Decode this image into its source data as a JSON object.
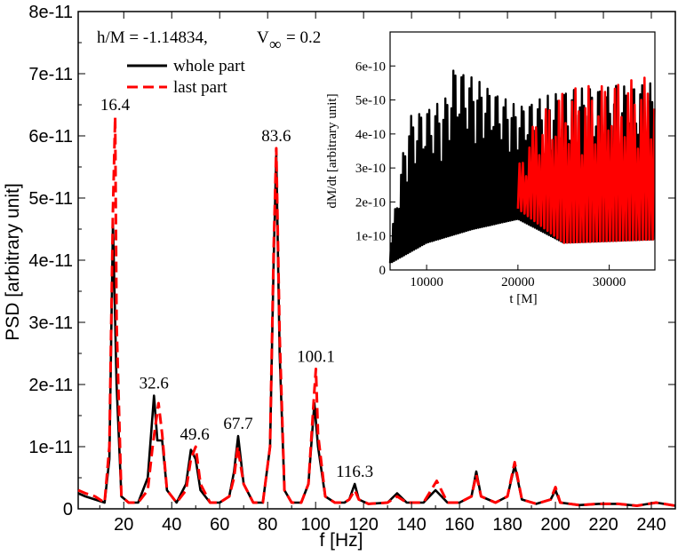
{
  "chart_data": [
    {
      "type": "line",
      "annotation": {
        "prefix": "h/M = -1.14834,",
        "v_symbol": "V",
        "v_subscript": "∞",
        "v_suffix": "= 0.2"
      },
      "xlabel": "f [Hz]",
      "ylabel": "PSD [arbitrary unit]",
      "xlim": [
        1,
        250
      ],
      "ylim": [
        0,
        8e-11
      ],
      "xticks": [
        20,
        40,
        60,
        80,
        100,
        120,
        140,
        160,
        180,
        200,
        220,
        240
      ],
      "xtick_labels": [
        "20",
        "40",
        "60",
        "80",
        "100",
        "120",
        "140",
        "160",
        "180",
        "200",
        "220",
        "240"
      ],
      "yticks": [
        0,
        1e-11,
        2e-11,
        3e-11,
        4e-11,
        5e-11,
        6e-11,
        7e-11,
        8e-11
      ],
      "ytick_labels": [
        "0",
        "1e-11",
        "2e-11",
        "3e-11",
        "4e-11",
        "5e-11",
        "6e-11",
        "7e-11",
        "8e-11"
      ],
      "grid": false,
      "legend_position": "top-left",
      "series": [
        {
          "name": "whole part",
          "color": "#000000",
          "dash": "solid",
          "x": [
            1,
            4,
            8,
            12,
            14,
            15.5,
            17,
            19,
            22,
            26,
            30,
            32.6,
            34,
            36,
            38,
            42,
            46,
            48,
            50,
            52,
            56,
            60,
            64,
            66,
            67.7,
            70,
            74,
            78,
            81,
            82.5,
            83.6,
            85,
            87,
            90,
            94,
            97,
            99.5,
            101,
            104,
            108,
            112,
            114,
            116.3,
            118,
            122,
            130,
            134,
            138,
            145,
            150,
            155,
            160,
            165,
            167,
            169,
            175,
            180,
            183,
            186,
            192,
            198,
            200,
            202,
            210,
            218,
            226,
            234,
            242,
            250
          ],
          "y": [
            2.5e-12,
            2e-12,
            1.5e-12,
            1e-12,
            8e-12,
            4.6e-11,
            2e-11,
            2e-12,
            1e-12,
            1e-12,
            5e-12,
            1.82e-11,
            1.1e-11,
            1.1e-11,
            3e-12,
            1e-12,
            4e-12,
            9.5e-12,
            8e-12,
            3e-12,
            1e-12,
            1e-12,
            2e-12,
            6e-12,
            1.17e-11,
            4e-12,
            1e-12,
            1e-12,
            1e-11,
            4e-11,
            5.7e-11,
            2.5e-11,
            3e-12,
            1e-12,
            1e-12,
            4e-12,
            1.7e-11,
            1e-11,
            2e-12,
            1e-12,
            1e-12,
            1.5e-12,
            4e-12,
            1.5e-12,
            8e-13,
            1e-12,
            2.5e-12,
            1e-12,
            1e-12,
            3e-12,
            1e-12,
            1e-12,
            2e-12,
            6e-12,
            2e-12,
            1e-12,
            2e-12,
            7e-12,
            1.5e-12,
            8e-13,
            1.5e-12,
            3e-12,
            1e-12,
            6e-13,
            8e-13,
            8e-13,
            5e-13,
            1e-12,
            5e-13
          ]
        },
        {
          "name": "last part",
          "color": "#ff0000",
          "dash": "dashed",
          "x": [
            1,
            4,
            8,
            12,
            14,
            15.5,
            16.4,
            17,
            19,
            22,
            26,
            30,
            32,
            34.5,
            36,
            38,
            42,
            46,
            48,
            50,
            52,
            56,
            60,
            64,
            66,
            67.5,
            70,
            74,
            78,
            81,
            82.5,
            83.6,
            85,
            87,
            90,
            94,
            97,
            99.5,
            100.1,
            101,
            104,
            108,
            112,
            114,
            116.3,
            118,
            122,
            130,
            134,
            138,
            145,
            150.5,
            155,
            160,
            165,
            167,
            169,
            175,
            180,
            183,
            186,
            192,
            198,
            200,
            202,
            210,
            218,
            226,
            234,
            242,
            250
          ],
          "y": [
            3e-12,
            2.5e-12,
            2e-12,
            1e-12,
            1e-11,
            4.8e-11,
            6.3e-11,
            3e-11,
            2e-12,
            1e-12,
            1e-12,
            3e-12,
            1e-11,
            1.7e-11,
            1.2e-11,
            3e-12,
            1e-12,
            3e-12,
            8e-12,
            1e-11,
            4e-12,
            1e-12,
            1e-12,
            2e-12,
            5e-12,
            1e-11,
            4e-12,
            1e-12,
            1e-12,
            1e-11,
            4.2e-11,
            5.8e-11,
            2.8e-11,
            3e-12,
            1e-12,
            1e-12,
            4e-12,
            1.9e-11,
            2.25e-11,
            1.2e-11,
            2e-12,
            1e-12,
            1e-12,
            1.5e-12,
            3e-12,
            1.5e-12,
            8e-13,
            1e-12,
            2e-12,
            1e-12,
            1e-12,
            4.5e-12,
            1e-12,
            1e-12,
            2e-12,
            5.5e-12,
            2e-12,
            1e-12,
            2e-12,
            7.5e-12,
            1.5e-12,
            8e-13,
            1.5e-12,
            3.5e-12,
            1e-12,
            6e-13,
            8e-13,
            8e-13,
            5e-13,
            1e-12,
            5e-13
          ]
        }
      ],
      "peak_labels": [
        {
          "text": "16.4",
          "x": 16.4,
          "y": 6.3e-11
        },
        {
          "text": "32.6",
          "x": 32.6,
          "y": 1.82e-11
        },
        {
          "text": "49.6",
          "x": 49.6,
          "y": 1e-11
        },
        {
          "text": "67.7",
          "x": 67.7,
          "y": 1.17e-11
        },
        {
          "text": "83.6",
          "x": 83.6,
          "y": 5.8e-11
        },
        {
          "text": "100.1",
          "x": 100.1,
          "y": 2.25e-11
        },
        {
          "text": "116.3",
          "x": 116.3,
          "y": 4e-12
        }
      ]
    },
    {
      "type": "line",
      "title": "",
      "xlabel": "t [M]",
      "ylabel": "dM/dt [arbitrary unit]",
      "xlim": [
        6000,
        35000
      ],
      "ylim": [
        0,
        7e-10
      ],
      "xticks": [
        10000,
        20000,
        30000
      ],
      "xtick_labels": [
        "10000",
        "20000",
        "30000"
      ],
      "yticks": [
        0,
        1e-10,
        2e-10,
        3e-10,
        4e-10,
        5e-10,
        6e-10
      ],
      "ytick_labels": [
        "0",
        "1e-10",
        "2e-10",
        "3e-10",
        "4e-10",
        "5e-10",
        "6e-10"
      ],
      "grid": false,
      "series": [
        {
          "name": "whole part",
          "color": "#000000",
          "t_range": [
            6000,
            35000
          ],
          "min_envelope": [
            [
              6000,
              2e-11
            ],
            [
              10000,
              8e-11
            ],
            [
              15000,
              1.2e-10
            ],
            [
              20000,
              1.5e-10
            ],
            [
              25000,
              8e-11
            ],
            [
              35000,
              9e-11
            ]
          ],
          "max_envelope": [
            [
              6000,
              8e-11
            ],
            [
              8000,
              4.5e-10
            ],
            [
              12000,
              5e-10
            ],
            [
              13000,
              6e-10
            ],
            [
              16000,
              5.5e-10
            ],
            [
              20000,
              4.8e-10
            ],
            [
              25000,
              5.3e-10
            ],
            [
              35000,
              5.5e-10
            ]
          ]
        },
        {
          "name": "last part",
          "color": "#ff0000",
          "t_range": [
            20000,
            35000
          ],
          "min_envelope": [
            [
              20000,
              1.8e-10
            ],
            [
              25000,
              8e-11
            ],
            [
              35000,
              9e-11
            ]
          ],
          "max_envelope": [
            [
              20000,
              3e-10
            ],
            [
              22000,
              4.5e-10
            ],
            [
              25000,
              5.3e-10
            ],
            [
              35000,
              5.7e-10
            ]
          ]
        }
      ]
    }
  ]
}
